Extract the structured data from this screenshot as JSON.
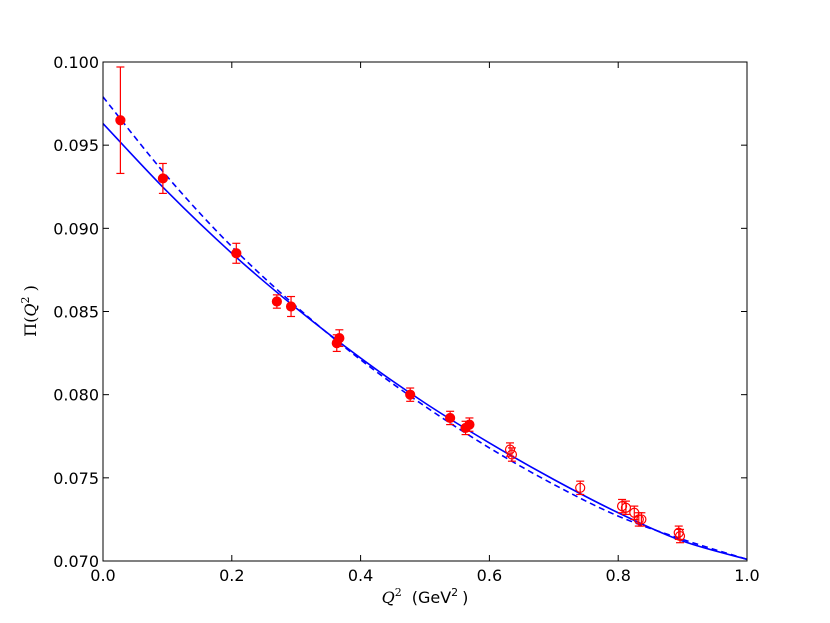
{
  "chart_data": {
    "type": "scatter",
    "xlabel_var": "Q",
    "xlabel_unit_pre": "(GeV",
    "xlabel_unit_post": ")",
    "ylabel_func": "Π(",
    "ylabel_var": "Q",
    "ylabel_post": " )",
    "superscript": "2",
    "xlim": [
      0.0,
      1.0
    ],
    "ylim": [
      0.07,
      0.1
    ],
    "xticks": [
      0.0,
      0.2,
      0.4,
      0.6,
      0.8,
      1.0
    ],
    "xtick_labels": [
      "0.0",
      "0.2",
      "0.4",
      "0.6",
      "0.8",
      "1.0"
    ],
    "yticks": [
      0.07,
      0.075,
      0.08,
      0.085,
      0.09,
      0.095,
      0.1
    ],
    "ytick_labels": [
      "0.070",
      "0.075",
      "0.080",
      "0.085",
      "0.090",
      "0.095",
      "0.100"
    ],
    "grid": false,
    "colors": {
      "points": "#ff0000",
      "errorbars": "#ff0000",
      "curves": "#0000ff"
    },
    "filled_points": [
      {
        "x": 0.027,
        "y": 0.0965,
        "yerr": 0.0032
      },
      {
        "x": 0.093,
        "y": 0.093,
        "yerr": 0.0009
      },
      {
        "x": 0.207,
        "y": 0.0885,
        "yerr": 0.0006
      },
      {
        "x": 0.27,
        "y": 0.0856,
        "yerr": 0.0004
      },
      {
        "x": 0.292,
        "y": 0.0853,
        "yerr": 0.0006
      },
      {
        "x": 0.363,
        "y": 0.0831,
        "yerr": 0.0005
      },
      {
        "x": 0.367,
        "y": 0.0834,
        "yerr": 0.0005
      },
      {
        "x": 0.477,
        "y": 0.08,
        "yerr": 0.0004
      },
      {
        "x": 0.539,
        "y": 0.0786,
        "yerr": 0.0004
      },
      {
        "x": 0.563,
        "y": 0.078,
        "yerr": 0.0004
      },
      {
        "x": 0.569,
        "y": 0.0782,
        "yerr": 0.0004
      }
    ],
    "open_points": [
      {
        "x": 0.632,
        "y": 0.0767,
        "yerr": 0.0004
      },
      {
        "x": 0.635,
        "y": 0.0764,
        "yerr": 0.0004
      },
      {
        "x": 0.741,
        "y": 0.0744,
        "yerr": 0.0004
      },
      {
        "x": 0.806,
        "y": 0.0733,
        "yerr": 0.0004
      },
      {
        "x": 0.812,
        "y": 0.0732,
        "yerr": 0.0004
      },
      {
        "x": 0.825,
        "y": 0.0729,
        "yerr": 0.0004
      },
      {
        "x": 0.832,
        "y": 0.0725,
        "yerr": 0.0004
      },
      {
        "x": 0.836,
        "y": 0.0725,
        "yerr": 0.0004
      },
      {
        "x": 0.894,
        "y": 0.0717,
        "yerr": 0.0004
      },
      {
        "x": 0.896,
        "y": 0.0715,
        "yerr": 0.0004
      }
    ],
    "series": [
      {
        "style": "solid",
        "x": [
          0.0,
          0.1,
          0.2,
          0.3,
          0.4,
          0.5,
          0.6,
          0.7,
          0.8,
          0.9,
          1.0
        ],
        "values": [
          0.0963,
          0.0922,
          0.0885,
          0.0852,
          0.0822,
          0.0795,
          0.0771,
          0.0749,
          0.0729,
          0.0712,
          0.0701
        ]
      },
      {
        "style": "dashed",
        "x": [
          0.0,
          0.1,
          0.2,
          0.3,
          0.4,
          0.5,
          0.6,
          0.7,
          0.8,
          0.9,
          1.0
        ],
        "values": [
          0.0979,
          0.0931,
          0.0889,
          0.0853,
          0.0821,
          0.0793,
          0.0768,
          0.0746,
          0.0727,
          0.0713,
          0.0701
        ]
      }
    ]
  }
}
